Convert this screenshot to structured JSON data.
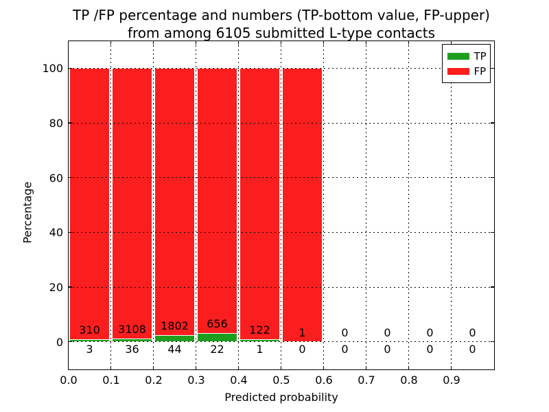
{
  "figure": {
    "title_line1": "TP /FP percentage and numbers (TP-bottom value, FP-upper)",
    "title_line2": "from among 6105 submitted L-type contacts"
  },
  "axes": {
    "xlabel": "Predicted probability",
    "ylabel": "Percentage",
    "x_tick_values": [
      0.0,
      0.1,
      0.2,
      0.3,
      0.4,
      0.5,
      0.6,
      0.7,
      0.8,
      0.9
    ],
    "x_tick_labels": [
      "0.0",
      "0.1",
      "0.2",
      "0.3",
      "0.4",
      "0.5",
      "0.6",
      "0.7",
      "0.8",
      "0.9"
    ],
    "y_tick_values": [
      0,
      20,
      40,
      60,
      80,
      100
    ],
    "y_tick_labels": [
      "0",
      "20",
      "40",
      "60",
      "80",
      "100"
    ],
    "xlim": [
      0,
      1.0
    ],
    "ylim": [
      -10,
      110
    ],
    "grid": "dotted"
  },
  "legend": {
    "position": "upper-right",
    "entries": [
      {
        "label": "TP",
        "color": "#1e9e1e"
      },
      {
        "label": "FP",
        "color": "#fb1e1e"
      }
    ]
  },
  "colors": {
    "tp": "#1e9e1e",
    "fp": "#fb1e1e",
    "grid": "#000000",
    "text": "#000000",
    "background": "#ffffff"
  },
  "chart_data": {
    "type": "bar",
    "stacked": true,
    "unit": "percent of bin, TP bottom / FP filling to 100",
    "total_submitted": 6105,
    "bin_width": 0.1,
    "bins": [
      {
        "x0": 0.0,
        "x1": 0.1,
        "tp": 3,
        "fp": 310
      },
      {
        "x0": 0.1,
        "x1": 0.2,
        "tp": 36,
        "fp": 3108
      },
      {
        "x0": 0.2,
        "x1": 0.3,
        "tp": 44,
        "fp": 1802
      },
      {
        "x0": 0.3,
        "x1": 0.4,
        "tp": 22,
        "fp": 656
      },
      {
        "x0": 0.4,
        "x1": 0.5,
        "tp": 1,
        "fp": 122
      },
      {
        "x0": 0.5,
        "x1": 0.6,
        "tp": 0,
        "fp": 1
      },
      {
        "x0": 0.6,
        "x1": 0.7,
        "tp": 0,
        "fp": 0
      },
      {
        "x0": 0.7,
        "x1": 0.8,
        "tp": 0,
        "fp": 0
      },
      {
        "x0": 0.8,
        "x1": 0.9,
        "tp": 0,
        "fp": 0
      },
      {
        "x0": 0.9,
        "x1": 1.0,
        "tp": 0,
        "fp": 0
      }
    ]
  }
}
